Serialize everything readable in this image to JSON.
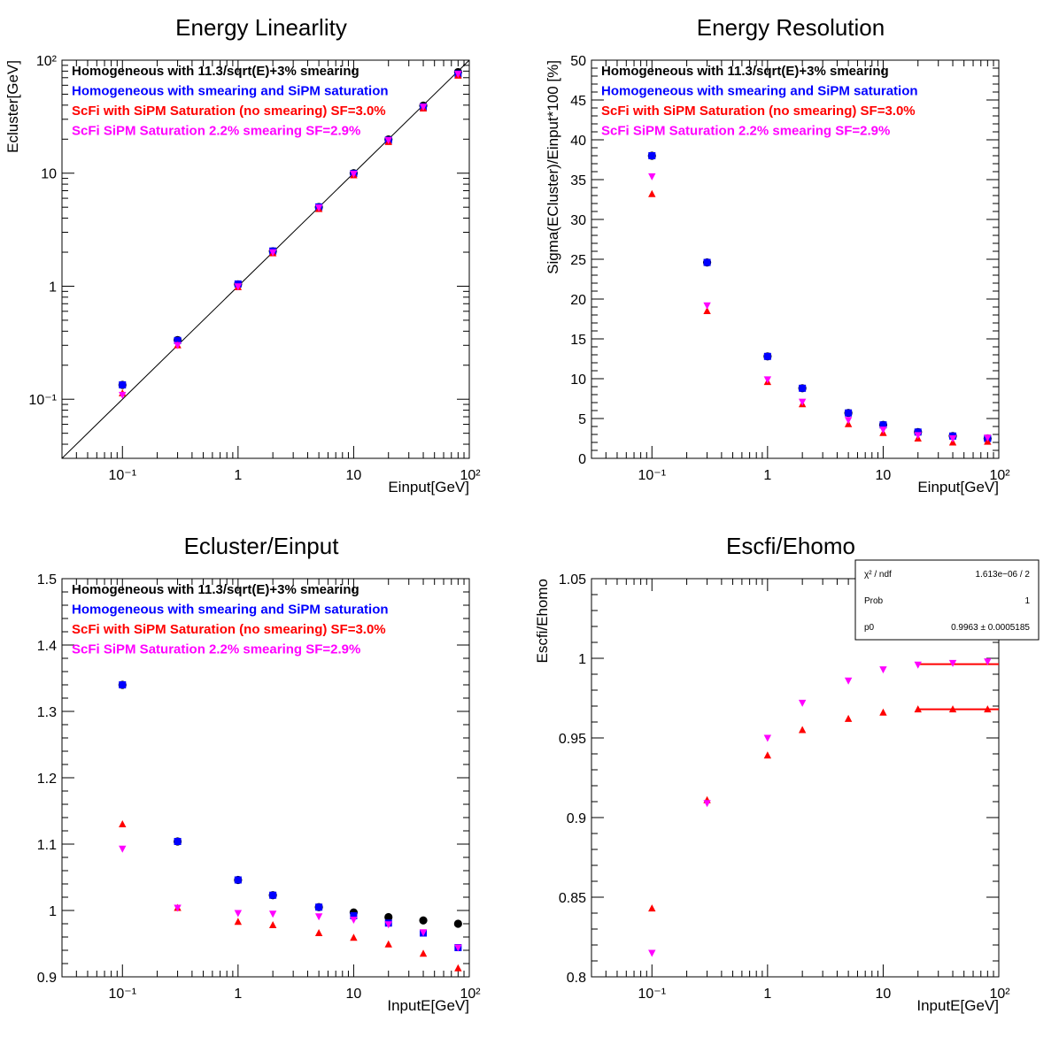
{
  "colors": {
    "homog": "#000000",
    "homog_sat": "#0000ff",
    "scfi": "#ff0000",
    "scfi_smear": "#ff00ff",
    "fit": "#ff0000"
  },
  "legend": [
    {
      "label": "Homogeneous with 11.3/sqrt(E)+3% smearing",
      "color": "#000000"
    },
    {
      "label": "Homogeneous with smearing and SiPM saturation",
      "color": "#0000ff"
    },
    {
      "label": "ScFi with SiPM Saturation (no smearing) SF=3.0%",
      "color": "#ff0000"
    },
    {
      "label": "ScFi SiPM Saturation 2.2% smearing SF=2.9%",
      "color": "#ff00ff"
    }
  ],
  "stats_box": {
    "rows": [
      {
        "name": "χ² / ndf",
        "value": "1.613e−06 / 2"
      },
      {
        "name": "Prob",
        "value": "1"
      },
      {
        "name": "p0",
        "value": "0.9963   ± 0.0005185"
      }
    ]
  },
  "chart_data": [
    {
      "type": "scatter",
      "title": "Energy Linearlity",
      "xlabel": "Einput[GeV]",
      "ylabel": "Ecluster[GeV]",
      "xscale": "log",
      "yscale": "log",
      "xlim": [
        0.03,
        100
      ],
      "ylim": [
        0.03,
        100
      ],
      "xticklabels": [
        "10⁻¹",
        "1",
        "10",
        "10²"
      ],
      "yticklabels": [
        "10⁻¹",
        "1",
        "10",
        "10²"
      ],
      "grid": false,
      "legend_position": "top-left",
      "reference_line": "y = x",
      "x": [
        0.1,
        0.3,
        1,
        2,
        5,
        10,
        20,
        40,
        80
      ],
      "series": [
        {
          "key": "homog",
          "marker": "circle",
          "values": [
            0.134,
            0.334,
            1.04,
            2.04,
            5.02,
            10.0,
            19.9,
            39.6,
            78.5
          ]
        },
        {
          "key": "homog_sat",
          "marker": "square",
          "values": [
            0.134,
            0.331,
            1.046,
            2.048,
            5.03,
            9.93,
            19.6,
            38.7,
            75.6
          ]
        },
        {
          "key": "scfi",
          "marker": "triangle-up",
          "values": [
            0.113,
            0.301,
            0.983,
            1.96,
            4.83,
            9.59,
            18.9,
            37.4,
            73.1
          ]
        },
        {
          "key": "scfi_smear",
          "marker": "triangle-down",
          "values": [
            0.109,
            0.301,
            0.996,
            1.99,
            4.96,
            9.86,
            19.6,
            38.6,
            75.5
          ]
        }
      ]
    },
    {
      "type": "scatter",
      "title": "Energy Resolution",
      "xlabel": "Einput[GeV]",
      "ylabel": "Sigma(ECluster)/Einput*100 [%]",
      "xscale": "log",
      "yscale": "linear",
      "xlim": [
        0.03,
        100
      ],
      "ylim": [
        0,
        50
      ],
      "xticklabels": [
        "10⁻¹",
        "1",
        "10",
        "10²"
      ],
      "yticks": [
        0,
        5,
        10,
        15,
        20,
        25,
        30,
        35,
        40,
        45,
        50
      ],
      "grid": false,
      "legend_position": "top-left",
      "x": [
        0.1,
        0.3,
        1,
        2,
        5,
        10,
        20,
        40,
        80
      ],
      "series": [
        {
          "key": "homog",
          "marker": "circle",
          "values": [
            38.0,
            24.6,
            12.8,
            8.8,
            5.7,
            4.2,
            3.3,
            2.8,
            2.5
          ]
        },
        {
          "key": "homog_sat",
          "marker": "square",
          "values": [
            38.0,
            24.6,
            12.8,
            8.8,
            5.7,
            4.2,
            3.3,
            2.8,
            2.5
          ]
        },
        {
          "key": "scfi",
          "marker": "triangle-up",
          "values": [
            33.2,
            18.5,
            9.6,
            6.8,
            4.3,
            3.2,
            2.5,
            2.0,
            2.1
          ]
        },
        {
          "key": "scfi_smear",
          "marker": "triangle-down",
          "values": [
            35.4,
            19.2,
            9.9,
            7.1,
            4.8,
            3.6,
            2.9,
            2.5,
            2.6
          ]
        }
      ]
    },
    {
      "type": "scatter",
      "title": "Ecluster/Einput",
      "xlabel": "InputE[GeV]",
      "ylabel": "",
      "xscale": "log",
      "yscale": "linear",
      "xlim": [
        0.03,
        100
      ],
      "ylim": [
        0.9,
        1.5
      ],
      "xticklabels": [
        "10⁻¹",
        "1",
        "10",
        "10²"
      ],
      "yticks": [
        0.9,
        1,
        1.1,
        1.2,
        1.3,
        1.4,
        1.5
      ],
      "grid": false,
      "legend_position": "top-left",
      "x": [
        0.1,
        0.3,
        1,
        2,
        5,
        10,
        20,
        40,
        80
      ],
      "series": [
        {
          "key": "homog",
          "marker": "circle",
          "values": [
            1.34,
            1.104,
            1.046,
            1.023,
            1.005,
            0.997,
            0.99,
            0.985,
            0.98
          ]
        },
        {
          "key": "homog_sat",
          "marker": "square",
          "values": [
            1.34,
            1.104,
            1.046,
            1.023,
            1.005,
            0.992,
            0.981,
            0.966,
            0.944
          ]
        },
        {
          "key": "scfi",
          "marker": "triangle-up",
          "values": [
            1.13,
            1.004,
            0.983,
            0.978,
            0.966,
            0.959,
            0.949,
            0.935,
            0.913
          ]
        },
        {
          "key": "scfi_smear",
          "marker": "triangle-down",
          "values": [
            1.093,
            1.004,
            0.996,
            0.995,
            0.991,
            0.986,
            0.979,
            0.967,
            0.944
          ]
        }
      ]
    },
    {
      "type": "scatter",
      "title": "Escfi/Ehomo",
      "xlabel": "InputE[GeV]",
      "ylabel": "Escfi/Ehomo",
      "xscale": "log",
      "yscale": "linear",
      "xlim": [
        0.03,
        100
      ],
      "ylim": [
        0.8,
        1.05
      ],
      "xticklabels": [
        "10⁻¹",
        "1",
        "10",
        "10²"
      ],
      "yticks": [
        0.8,
        0.85,
        0.9,
        0.95,
        1,
        1.05
      ],
      "grid": false,
      "x": [
        0.1,
        0.3,
        1,
        2,
        5,
        10,
        20,
        40,
        80
      ],
      "series": [
        {
          "key": "scfi",
          "marker": "triangle-up",
          "values": [
            0.843,
            0.911,
            0.939,
            0.955,
            0.962,
            0.966,
            0.968,
            0.968,
            0.968
          ]
        },
        {
          "key": "scfi_smear",
          "marker": "triangle-down",
          "values": [
            0.815,
            0.909,
            0.95,
            0.972,
            0.986,
            0.993,
            0.996,
            0.997,
            0.998
          ]
        }
      ],
      "fits": [
        {
          "key": "fit",
          "x_from": 20,
          "x_to": 100,
          "value": 0.9963
        },
        {
          "key": "fit",
          "x_from": 20,
          "x_to": 100,
          "value": 0.968
        }
      ]
    }
  ]
}
